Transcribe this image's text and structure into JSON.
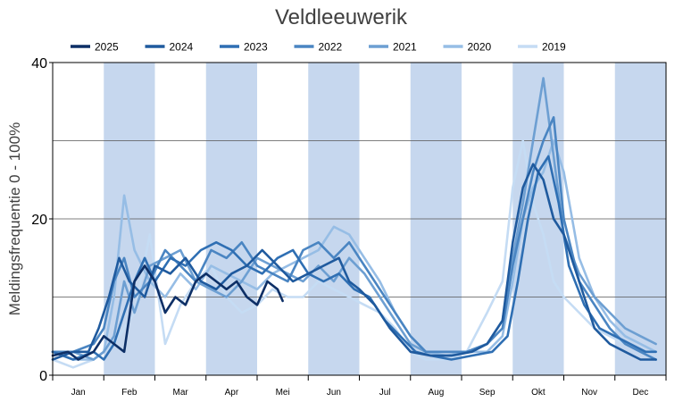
{
  "chart_data": {
    "type": "line",
    "title": "Veldleeuwerik",
    "ylabel": "Meldingsfrequentie 0 - 100%",
    "xlabel": "",
    "ylim": [
      0,
      40
    ],
    "yticks": [
      "0",
      "20",
      "40"
    ],
    "grid_lines_at": [
      10,
      20,
      30
    ],
    "shaded_months": [
      "Feb",
      "Apr",
      "Jun",
      "Aug",
      "Okt",
      "Dec"
    ],
    "categories": [
      "Jan",
      "Feb",
      "Mar",
      "Apr",
      "Mei",
      "Jun",
      "Jul",
      "Aug",
      "Sep",
      "Okt",
      "Nov",
      "Dec"
    ],
    "legend_position": "top",
    "series": [
      {
        "name": "2025",
        "color": "#0d2f66",
        "x": [
          0,
          0.3,
          0.5,
          0.8,
          1.0,
          1.2,
          1.4,
          1.6,
          1.8,
          2.0,
          2.2,
          2.4,
          2.6,
          2.8,
          3.0,
          3.2,
          3.4,
          3.6,
          3.8,
          4.0,
          4.2,
          4.4,
          4.5
        ],
        "values": [
          2.5,
          3,
          2,
          3,
          5,
          4,
          3,
          12,
          14,
          12,
          8,
          10,
          9,
          12,
          13,
          12,
          11,
          12,
          10,
          9,
          12,
          11,
          9.5
        ]
      },
      {
        "name": "2024",
        "color": "#1f5a9e",
        "x": [
          0,
          0.4,
          0.7,
          0.9,
          1.1,
          1.3,
          1.5,
          1.8,
          2.0,
          2.3,
          2.6,
          2.9,
          3.2,
          3.5,
          3.8,
          4.1,
          4.4,
          4.7,
          5.0,
          5.3,
          5.6,
          5.8,
          6.0,
          6.3,
          6.6,
          7.0,
          7.4,
          7.8,
          8.2,
          8.5,
          8.8,
          9.0,
          9.2,
          9.4,
          9.6,
          9.8,
          10.0,
          10.3,
          10.6,
          10.9,
          11.2,
          11.5,
          11.8
        ],
        "values": [
          2,
          3,
          3,
          6,
          10,
          15,
          12,
          10,
          14,
          13,
          15,
          12,
          11,
          13,
          14,
          16,
          14,
          12,
          13,
          14,
          15,
          12,
          11,
          9,
          6,
          3,
          2.5,
          2.5,
          3,
          4,
          7,
          17,
          24,
          27,
          25,
          20,
          18,
          12,
          6,
          4,
          3,
          2,
          2
        ]
      },
      {
        "name": "2023",
        "color": "#2f6fb3",
        "x": [
          0,
          0.4,
          0.8,
          1.0,
          1.2,
          1.4,
          1.6,
          1.8,
          2.0,
          2.3,
          2.6,
          2.9,
          3.2,
          3.5,
          3.8,
          4.1,
          4.4,
          4.7,
          5.0,
          5.3,
          5.6,
          5.9,
          6.2,
          6.5,
          6.8,
          7.1,
          7.4,
          7.8,
          8.2,
          8.6,
          8.9,
          9.1,
          9.3,
          9.5,
          9.7,
          9.9,
          10.1,
          10.4,
          10.7,
          11.0,
          11.3,
          11.6,
          11.8
        ],
        "values": [
          3,
          2,
          3,
          2,
          4,
          8,
          12,
          15,
          12,
          15,
          14,
          16,
          17,
          16,
          14,
          13,
          15,
          16,
          13,
          12,
          13,
          11,
          10,
          7,
          5,
          3,
          2.5,
          2,
          2.5,
          3,
          5,
          12,
          20,
          26,
          28,
          22,
          14,
          9,
          6,
          5,
          4,
          3,
          3
        ]
      },
      {
        "name": "2022",
        "color": "#4a85c2",
        "x": [
          0,
          0.4,
          0.8,
          1.0,
          1.2,
          1.4,
          1.6,
          1.9,
          2.2,
          2.5,
          2.8,
          3.1,
          3.4,
          3.7,
          4.0,
          4.3,
          4.6,
          4.9,
          5.2,
          5.5,
          5.8,
          6.1,
          6.4,
          6.7,
          7.0,
          7.3,
          7.7,
          8.1,
          8.5,
          8.8,
          9.0,
          9.2,
          9.4,
          9.6,
          9.8,
          10.0,
          10.3,
          10.6,
          10.9,
          11.2,
          11.5,
          11.8
        ],
        "values": [
          3,
          3,
          4,
          6,
          12,
          15,
          10,
          12,
          16,
          14,
          12,
          16,
          15,
          17,
          14,
          13,
          12,
          16,
          17,
          15,
          17,
          14,
          11,
          8,
          5,
          3,
          3,
          3,
          4,
          6,
          14,
          20,
          26,
          30,
          33,
          20,
          12,
          9,
          6,
          4,
          3,
          2
        ]
      },
      {
        "name": "2021",
        "color": "#6d9fd2",
        "x": [
          0,
          0.4,
          0.8,
          1.0,
          1.2,
          1.4,
          1.6,
          1.9,
          2.2,
          2.5,
          2.8,
          3.1,
          3.4,
          3.7,
          4.0,
          4.3,
          4.6,
          4.9,
          5.2,
          5.5,
          5.8,
          6.1,
          6.4,
          6.7,
          7.0,
          7.3,
          7.7,
          8.1,
          8.5,
          8.8,
          9.0,
          9.2,
          9.4,
          9.6,
          9.8,
          10.0,
          10.3,
          10.6,
          10.9,
          11.2,
          11.5,
          11.8
        ],
        "values": [
          3,
          3,
          2,
          3,
          5,
          12,
          8,
          14,
          15,
          16,
          12,
          11,
          10,
          12,
          15,
          14,
          13,
          12,
          14,
          12,
          15,
          13,
          10,
          7,
          4,
          3,
          3,
          3,
          4,
          7,
          15,
          22,
          30,
          38,
          28,
          18,
          13,
          10,
          8,
          6,
          5,
          4
        ]
      },
      {
        "name": "2020",
        "color": "#96bde5",
        "x": [
          0,
          0.4,
          0.8,
          1.0,
          1.2,
          1.4,
          1.6,
          1.9,
          2.2,
          2.5,
          2.8,
          3.1,
          3.4,
          3.7,
          4.0,
          4.3,
          4.6,
          4.9,
          5.2,
          5.5,
          5.8,
          6.1,
          6.4,
          6.7,
          7.0,
          7.3,
          7.7,
          8.1,
          8.5,
          8.8,
          9.0,
          9.2,
          9.4,
          9.6,
          9.8,
          10.0,
          10.3,
          10.6,
          10.9,
          11.2,
          11.5,
          11.8
        ],
        "values": [
          3,
          2,
          2,
          3,
          10,
          23,
          16,
          12,
          10,
          13,
          11,
          14,
          13,
          12,
          11,
          13,
          14,
          15,
          16,
          19,
          18,
          15,
          12,
          8,
          5,
          3,
          2.5,
          3,
          3,
          5,
          12,
          20,
          24,
          26,
          30,
          26,
          15,
          10,
          7,
          5,
          4,
          3
        ]
      },
      {
        "name": "2019",
        "color": "#c5dcf4",
        "x": [
          0,
          0.4,
          0.8,
          1.0,
          1.2,
          1.4,
          1.6,
          1.9,
          2.2,
          2.5,
          2.8,
          3.1,
          3.4,
          3.7,
          4.0,
          4.3,
          4.6,
          4.9,
          5.2,
          5.5,
          5.8,
          6.1,
          6.4,
          6.7,
          7.0,
          7.3,
          7.7,
          8.1,
          8.5,
          8.8,
          9.0,
          9.2,
          9.4,
          9.6,
          9.8,
          10.0,
          10.3,
          10.6,
          10.9,
          11.2,
          11.5,
          11.8
        ],
        "values": [
          2,
          1,
          2,
          3,
          4,
          6,
          8,
          18,
          4,
          9,
          12,
          14,
          10,
          8,
          9,
          11,
          10,
          10,
          12,
          11,
          10,
          9,
          8,
          6,
          3,
          2,
          2,
          3,
          8,
          12,
          24,
          30,
          22,
          18,
          12,
          10,
          8,
          6,
          5,
          4,
          3,
          2
        ]
      }
    ]
  }
}
